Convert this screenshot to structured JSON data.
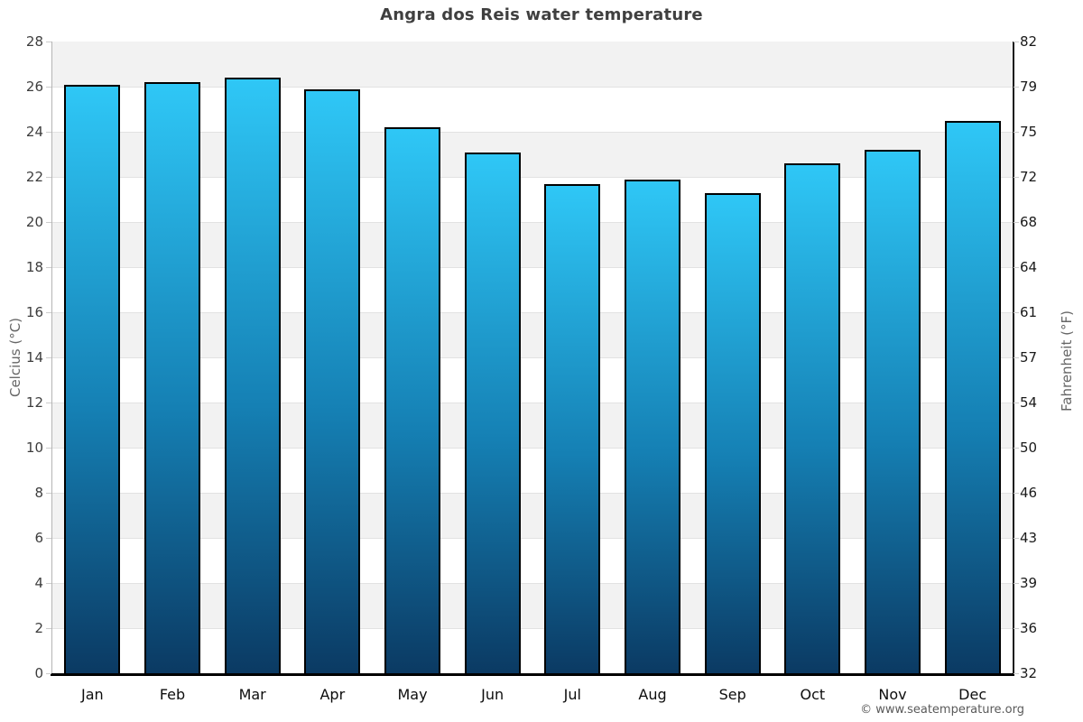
{
  "header": {
    "title": "Angra dos Reis water temperature"
  },
  "chart_data": {
    "type": "bar",
    "title": "Angra dos Reis water temperature",
    "categories": [
      "Jan",
      "Feb",
      "Mar",
      "Apr",
      "May",
      "Jun",
      "Jul",
      "Aug",
      "Sep",
      "Oct",
      "Nov",
      "Dec"
    ],
    "series": [
      {
        "name": "Water temperature (°C)",
        "values": [
          26.1,
          26.2,
          26.4,
          25.9,
          24.2,
          23.1,
          21.7,
          21.9,
          21.3,
          22.6,
          23.2,
          24.5
        ]
      }
    ],
    "xlabel": "",
    "ylabel_left": "Celcius (°C)",
    "ylabel_right": "Fahrenheit (°F)",
    "ylim_celsius": [
      0,
      28
    ],
    "yticks_celsius": [
      28,
      26,
      24,
      22,
      20,
      18,
      16,
      14,
      12,
      10,
      8,
      6,
      4,
      2,
      0
    ],
    "yticks_fahrenheit": [
      "82",
      "79",
      "75",
      "72",
      "68",
      "64",
      "61",
      "57",
      "54",
      "50",
      "46",
      "43",
      "39",
      "36",
      "32"
    ],
    "legend": "none",
    "grid": "alternating-horizontal-bands",
    "colors": {
      "bar_gradient_top": "#2fc7f6",
      "bar_gradient_bottom": "#0b3a63",
      "bar_border": "#000000",
      "band_gray": "#f2f2f2",
      "band_white": "#ffffff",
      "title_text": "#3f3f3f",
      "axis_title_text": "#666666",
      "tick_text": "#3d3d3d"
    }
  },
  "footer": {
    "attribution": "© www.seatemperature.org"
  }
}
